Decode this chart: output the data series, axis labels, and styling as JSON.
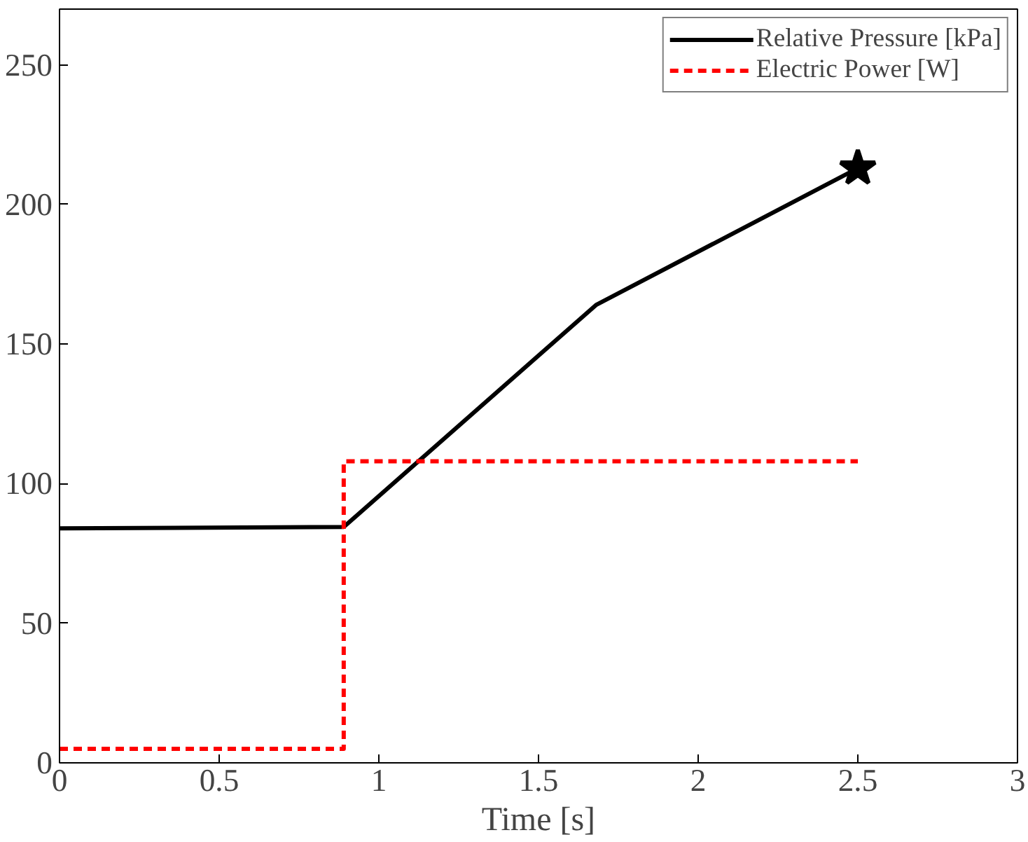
{
  "chart_data": {
    "type": "line",
    "xlabel": "Time [s]",
    "xlim": [
      0,
      3
    ],
    "ylim": [
      0,
      270
    ],
    "xticks": [
      0,
      0.5,
      1,
      1.5,
      2,
      2.5,
      3
    ],
    "yticks": [
      0,
      50,
      100,
      150,
      200,
      250
    ],
    "grid": false,
    "legend": "top right",
    "series": [
      {
        "name": "Relative Pressure [kPa]",
        "color": "#000000",
        "x": [
          0,
          0.89,
          1.68,
          2.5
        ],
        "values": [
          84,
          84.5,
          164,
          213
        ],
        "line_style": "solid",
        "marker": "none"
      },
      {
        "name": "Electric Power [W]",
        "color": "#ff0000",
        "type": "step",
        "x": [
          0,
          0.89,
          2.5
        ],
        "values": [
          5,
          108,
          108
        ],
        "line_style": "dashed",
        "marker": "none"
      },
      {
        "type": "scatter",
        "color": "#000000",
        "x": [
          2.5
        ],
        "values": [
          213
        ],
        "marker": "star"
      }
    ]
  }
}
